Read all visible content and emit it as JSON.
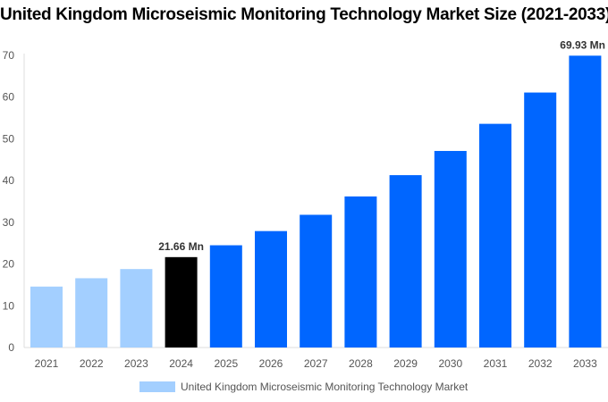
{
  "chart_data": {
    "type": "bar",
    "title": "United Kingdom Microseismic Monitoring Technology Market Size (2021-2033)",
    "categories": [
      "2021",
      "2022",
      "2023",
      "2024",
      "2025",
      "2026",
      "2027",
      "2028",
      "2029",
      "2030",
      "2031",
      "2032",
      "2033"
    ],
    "values": [
      14.6,
      16.6,
      18.8,
      21.66,
      24.5,
      27.9,
      31.8,
      36.2,
      41.3,
      47.1,
      53.6,
      61.1,
      69.93
    ],
    "bar_colors": [
      "#a3cfff",
      "#a3cfff",
      "#a3cfff",
      "#000000",
      "#0066ff",
      "#0066ff",
      "#0066ff",
      "#0066ff",
      "#0066ff",
      "#0066ff",
      "#0066ff",
      "#0066ff",
      "#0066ff"
    ],
    "data_labels": {
      "3": "21.66 Mn",
      "12": "69.93 Mn"
    },
    "yticks": [
      0,
      10,
      20,
      30,
      40,
      50,
      60,
      70
    ],
    "ylim": [
      0,
      70
    ],
    "xlabel": "",
    "ylabel": "",
    "grid": false,
    "legend": {
      "label": "United Kingdom Microseismic Monitoring Technology Market",
      "color": "#a3cfff",
      "placement": "bottom"
    }
  }
}
